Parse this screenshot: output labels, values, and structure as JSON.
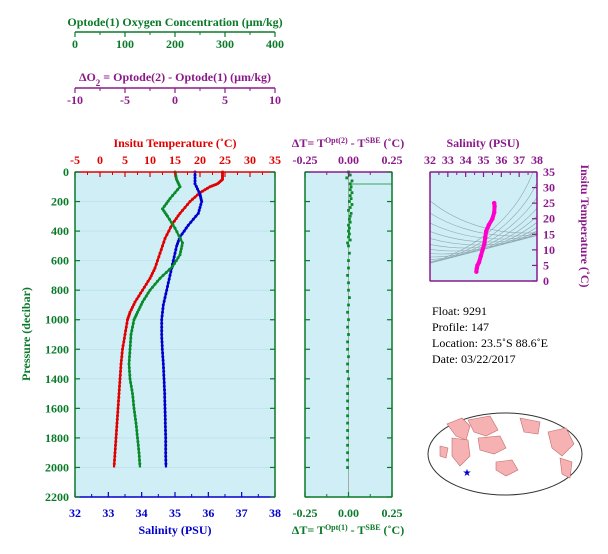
{
  "axes": {
    "oxygen": {
      "label": "Optode(1) Oxygen Concentration (µm/kg)",
      "ticks": [
        "0",
        "100",
        "200",
        "300",
        "400"
      ],
      "range": [
        0,
        400
      ],
      "color": "#0a7a2a"
    },
    "delta_o2": {
      "label_prefix": "ΔO",
      "label_sub": "2",
      "label_rest": " = Optode(2) - Optode(1)   (µm/kg)",
      "ticks": [
        "-10",
        "-5",
        "0",
        "5",
        "10"
      ],
      "range": [
        -10,
        10
      ],
      "color": "#8a1a8a"
    },
    "temperature": {
      "label": "Insitu Temperature (˚C)",
      "ticks": [
        "-5",
        "0",
        "5",
        "10",
        "15",
        "20",
        "25",
        "30",
        "35"
      ],
      "range": [
        -5,
        35
      ],
      "color": "#e00000"
    },
    "salinity": {
      "label": "Salinity (PSU)",
      "ticks": [
        "32",
        "33",
        "34",
        "35",
        "36",
        "37",
        "38"
      ],
      "range": [
        32,
        38
      ],
      "color": "#0000cc"
    },
    "pressure": {
      "label": "Pressure (decibar)",
      "ticks": [
        "0",
        "200",
        "400",
        "600",
        "800",
        "1000",
        "1200",
        "1400",
        "1600",
        "1800",
        "2000",
        "2200"
      ],
      "range": [
        0,
        2200
      ],
      "color": "#0a7a2a"
    },
    "dt_top": {
      "label_a": "ΔT= T",
      "sup_a": "Opt(2)",
      "label_b": " - T",
      "sup_b": "SBE",
      "label_c": " (˚C)",
      "ticks": [
        "-0.25",
        "0.00",
        "0.25"
      ],
      "range": [
        -0.25,
        0.25
      ],
      "color": "#8a1a8a"
    },
    "dt_bottom": {
      "label_a": "ΔT= T",
      "sup_a": "Opt(1)",
      "label_b": " - T",
      "sup_b": "SBE",
      "label_c": " (˚C)",
      "ticks": [
        "-0.25",
        "0.00",
        "0.25"
      ],
      "range": [
        -0.25,
        0.25
      ],
      "color": "#0a7a2a"
    },
    "ts_salinity": {
      "label": "Salinity (PSU)",
      "ticks": [
        "32",
        "33",
        "34",
        "35",
        "36",
        "37",
        "38"
      ],
      "range": [
        32,
        38
      ],
      "color": "#8a1a8a"
    },
    "ts_temperature": {
      "label": "Insitu Temperature (˚C)",
      "ticks": [
        "0",
        "5",
        "10",
        "15",
        "20",
        "25",
        "30",
        "35"
      ],
      "range": [
        0,
        35
      ],
      "color": "#8a1a8a"
    }
  },
  "info": {
    "float": "Float:  9291",
    "profile": "Profile:  147",
    "location": "Location:  23.5˚S  88.6˚E",
    "date": "Date:  03/22/2017"
  },
  "colors": {
    "panel_bg": "#cfeef6",
    "temperature": "#e00000",
    "salinity": "#0000cc",
    "oxygen": "#0a8a2a",
    "ts_line": "#ff00cc",
    "land": "#f6b2b2",
    "ocean": "#ffffff",
    "marker": "#0000cc"
  },
  "chart_data": [
    {
      "type": "line",
      "series": [
        {
          "name": "Insitu Temperature",
          "axis": "temperature",
          "points": [
            [
              24.5,
              0
            ],
            [
              24.5,
              50
            ],
            [
              23.5,
              80
            ],
            [
              22,
              100
            ],
            [
              20,
              140
            ],
            [
              18,
              200
            ],
            [
              16,
              280
            ],
            [
              14.5,
              350
            ],
            [
              13,
              450
            ],
            [
              12,
              550
            ],
            [
              11,
              650
            ],
            [
              10,
              720
            ],
            [
              8.5,
              800
            ],
            [
              7,
              880
            ],
            [
              6,
              950
            ],
            [
              5.5,
              1000
            ],
            [
              5,
              1100
            ],
            [
              4.5,
              1200
            ],
            [
              4.2,
              1300
            ],
            [
              4,
              1400
            ],
            [
              3.8,
              1500
            ],
            [
              3.6,
              1600
            ],
            [
              3.4,
              1700
            ],
            [
              3.2,
              1800
            ],
            [
              3,
              1900
            ],
            [
              2.8,
              2000
            ]
          ]
        },
        {
          "name": "Salinity",
          "axis": "salinity",
          "points": [
            [
              35.6,
              0
            ],
            [
              35.6,
              80
            ],
            [
              35.75,
              150
            ],
            [
              35.8,
              200
            ],
            [
              35.7,
              280
            ],
            [
              35.4,
              360
            ],
            [
              35.15,
              440
            ],
            [
              35.05,
              500
            ],
            [
              34.95,
              600
            ],
            [
              34.85,
              700
            ],
            [
              34.75,
              800
            ],
            [
              34.65,
              900
            ],
            [
              34.6,
              1000
            ],
            [
              34.6,
              1100
            ],
            [
              34.62,
              1200
            ],
            [
              34.65,
              1300
            ],
            [
              34.67,
              1400
            ],
            [
              34.69,
              1500
            ],
            [
              34.7,
              1600
            ],
            [
              34.71,
              1700
            ],
            [
              34.72,
              1800
            ],
            [
              34.72,
              1900
            ],
            [
              34.73,
              2000
            ]
          ]
        },
        {
          "name": "Oxygen",
          "axis": "oxygen",
          "points": [
            [
              200,
              0
            ],
            [
              203,
              50
            ],
            [
              210,
              100
            ],
            [
              190,
              180
            ],
            [
              175,
              250
            ],
            [
              185,
              300
            ],
            [
              200,
              380
            ],
            [
              215,
              480
            ],
            [
              210,
              560
            ],
            [
              195,
              640
            ],
            [
              170,
              720
            ],
            [
              150,
              800
            ],
            [
              135,
              880
            ],
            [
              125,
              950
            ],
            [
              118,
              1000
            ],
            [
              112,
              1100
            ],
            [
              110,
              1200
            ],
            [
              108,
              1300
            ],
            [
              110,
              1400
            ],
            [
              115,
              1500
            ],
            [
              118,
              1600
            ],
            [
              122,
              1700
            ],
            [
              125,
              1800
            ],
            [
              128,
              1900
            ],
            [
              130,
              2000
            ]
          ]
        }
      ]
    },
    {
      "type": "scatter",
      "series": [
        {
          "name": "ΔT Opt(1)",
          "axis": "dt_bottom",
          "points": [
            [
              0.0,
              0
            ],
            [
              0.01,
              20
            ],
            [
              -0.01,
              40
            ],
            [
              0.02,
              60
            ],
            [
              0.01,
              80
            ],
            [
              0.015,
              100
            ],
            [
              0.01,
              120
            ],
            [
              0.02,
              140
            ],
            [
              0.01,
              160
            ],
            [
              0.015,
              180
            ],
            [
              0.005,
              200
            ],
            [
              0.02,
              220
            ],
            [
              0.01,
              240
            ],
            [
              0.0,
              260
            ],
            [
              0.015,
              280
            ],
            [
              0.01,
              300
            ],
            [
              0.005,
              320
            ],
            [
              0.01,
              340
            ],
            [
              0.0,
              360
            ],
            [
              0.005,
              380
            ],
            [
              0.0,
              400
            ],
            [
              0.005,
              420
            ],
            [
              0.0,
              440
            ],
            [
              0.01,
              460
            ],
            [
              -0.005,
              480
            ],
            [
              0.0,
              500
            ],
            [
              0.005,
              550
            ],
            [
              0.0,
              600
            ],
            [
              0.0,
              650
            ],
            [
              -0.005,
              700
            ],
            [
              0.0,
              750
            ],
            [
              0.0,
              800
            ],
            [
              0.005,
              850
            ],
            [
              0.0,
              900
            ],
            [
              -0.005,
              950
            ],
            [
              0.0,
              1000
            ],
            [
              -0.005,
              1050
            ],
            [
              0.0,
              1100
            ],
            [
              -0.005,
              1150
            ],
            [
              -0.005,
              1200
            ],
            [
              0.0,
              1250
            ],
            [
              -0.005,
              1300
            ],
            [
              -0.005,
              1350
            ],
            [
              0.0,
              1400
            ],
            [
              -0.005,
              1450
            ],
            [
              -0.005,
              1500
            ],
            [
              -0.005,
              1550
            ],
            [
              -0.005,
              1600
            ],
            [
              -0.005,
              1650
            ],
            [
              -0.005,
              1700
            ],
            [
              -0.005,
              1750
            ],
            [
              -0.005,
              1800
            ],
            [
              -0.005,
              1850
            ],
            [
              -0.005,
              1900
            ],
            [
              -0.005,
              1950
            ],
            [
              -0.005,
              2000
            ]
          ]
        }
      ]
    },
    {
      "type": "line",
      "series": [
        {
          "name": "T-S",
          "axis_x": "ts_salinity",
          "axis_y": "ts_temperature",
          "points": [
            [
              34.6,
              3
            ],
            [
              34.62,
              4
            ],
            [
              34.66,
              5
            ],
            [
              34.75,
              6
            ],
            [
              34.85,
              8
            ],
            [
              34.95,
              10
            ],
            [
              35.05,
              12
            ],
            [
              35.1,
              14
            ],
            [
              35.15,
              16
            ],
            [
              35.3,
              18
            ],
            [
              35.5,
              20
            ],
            [
              35.6,
              22
            ],
            [
              35.62,
              24
            ],
            [
              35.6,
              25
            ]
          ]
        }
      ]
    }
  ]
}
